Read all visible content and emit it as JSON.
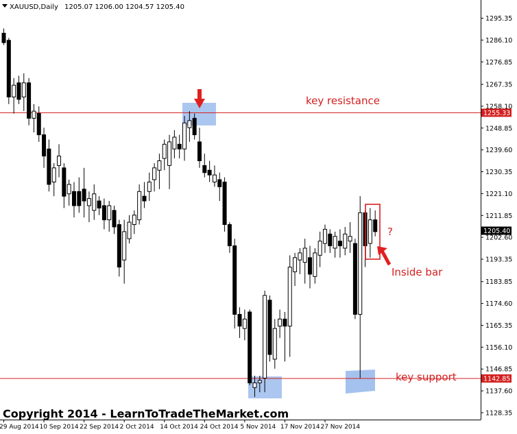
{
  "chart_data": {
    "type": "candlestick",
    "symbol_header": "XAUUSD,Daily",
    "ohlc_header": "1205.07 1206.00 1204.57 1205.40",
    "y_axis_ticks": [
      "1295.35",
      "1286.10",
      "1276.85",
      "1267.35",
      "1258.10",
      "1248.85",
      "1239.60",
      "1230.35",
      "1221.10",
      "1211.85",
      "1202.60",
      "1193.35",
      "1183.85",
      "1174.60",
      "1165.35",
      "1156.10",
      "1146.85",
      "1137.60",
      "1128.35"
    ],
    "x_axis_ticks": [
      "29 Aug 2014",
      "10 Sep 2014",
      "22 Sep 2014",
      "2 Oct 2014",
      "14 Oct 2014",
      "24 Oct 2014",
      "5 Nov 2014",
      "17 Nov 2014",
      "27 Nov 2014"
    ],
    "ylim": [
      1126.6,
      1298.7
    ],
    "current_price_label": "1205.40",
    "current_price": 1205.4,
    "levels": [
      {
        "name": "key resistance",
        "value": 1255.33,
        "label": "1255.33"
      },
      {
        "name": "key support",
        "value": 1142.85,
        "label": "1142.85"
      }
    ],
    "annotations": {
      "inside_bar": "Inside bar",
      "question": "?",
      "copyright": "Copyright 2014 - LearnToTradeTheMarket.com"
    },
    "candles": [
      {
        "o": 1289.0,
        "h": 1291.0,
        "l": 1284.0,
        "c": 1285.0
      },
      {
        "o": 1286.0,
        "h": 1287.0,
        "l": 1259.0,
        "c": 1262.0
      },
      {
        "o": 1262.0,
        "h": 1270.0,
        "l": 1255.0,
        "c": 1267.0
      },
      {
        "o": 1268.0,
        "h": 1271.0,
        "l": 1259.0,
        "c": 1261.0
      },
      {
        "o": 1262.0,
        "h": 1272.0,
        "l": 1256.0,
        "c": 1268.0
      },
      {
        "o": 1268.0,
        "h": 1270.0,
        "l": 1250.0,
        "c": 1253.0
      },
      {
        "o": 1253.0,
        "h": 1259.0,
        "l": 1247.0,
        "c": 1256.0
      },
      {
        "o": 1255.0,
        "h": 1258.0,
        "l": 1243.0,
        "c": 1246.0
      },
      {
        "o": 1246.0,
        "h": 1249.0,
        "l": 1232.0,
        "c": 1237.0
      },
      {
        "o": 1240.0,
        "h": 1244.0,
        "l": 1222.0,
        "c": 1225.0
      },
      {
        "o": 1226.0,
        "h": 1234.0,
        "l": 1220.0,
        "c": 1232.0
      },
      {
        "o": 1233.0,
        "h": 1242.0,
        "l": 1228.0,
        "c": 1237.0
      },
      {
        "o": 1232.0,
        "h": 1234.0,
        "l": 1215.0,
        "c": 1220.0
      },
      {
        "o": 1221.0,
        "h": 1227.0,
        "l": 1216.0,
        "c": 1225.0
      },
      {
        "o": 1222.0,
        "h": 1226.0,
        "l": 1211.0,
        "c": 1216.0
      },
      {
        "o": 1222.0,
        "h": 1228.0,
        "l": 1213.0,
        "c": 1216.0
      },
      {
        "o": 1223.0,
        "h": 1232.0,
        "l": 1211.0,
        "c": 1218.0
      },
      {
        "o": 1216.0,
        "h": 1222.0,
        "l": 1209.0,
        "c": 1219.0
      },
      {
        "o": 1214.0,
        "h": 1225.0,
        "l": 1210.0,
        "c": 1221.0
      },
      {
        "o": 1218.0,
        "h": 1220.0,
        "l": 1212.0,
        "c": 1215.0
      },
      {
        "o": 1216.0,
        "h": 1219.0,
        "l": 1206.0,
        "c": 1210.0
      },
      {
        "o": 1210.0,
        "h": 1218.0,
        "l": 1205.0,
        "c": 1216.0
      },
      {
        "o": 1214.0,
        "h": 1216.0,
        "l": 1204.0,
        "c": 1207.0
      },
      {
        "o": 1208.0,
        "h": 1210.0,
        "l": 1186.0,
        "c": 1190.0
      },
      {
        "o": 1193.0,
        "h": 1210.0,
        "l": 1183.0,
        "c": 1205.0
      },
      {
        "o": 1202.0,
        "h": 1212.0,
        "l": 1200.0,
        "c": 1209.0
      },
      {
        "o": 1208.0,
        "h": 1214.0,
        "l": 1204.0,
        "c": 1212.0
      },
      {
        "o": 1210.0,
        "h": 1225.0,
        "l": 1208.0,
        "c": 1222.0
      },
      {
        "o": 1220.0,
        "h": 1226.0,
        "l": 1215.0,
        "c": 1218.0
      },
      {
        "o": 1222.0,
        "h": 1230.0,
        "l": 1218.0,
        "c": 1226.0
      },
      {
        "o": 1227.0,
        "h": 1234.0,
        "l": 1222.0,
        "c": 1232.0
      },
      {
        "o": 1231.0,
        "h": 1238.0,
        "l": 1223.0,
        "c": 1235.0
      },
      {
        "o": 1236.0,
        "h": 1244.0,
        "l": 1231.0,
        "c": 1242.0
      },
      {
        "o": 1233.0,
        "h": 1246.0,
        "l": 1223.0,
        "c": 1243.0
      },
      {
        "o": 1240.0,
        "h": 1248.0,
        "l": 1236.0,
        "c": 1245.0
      },
      {
        "o": 1242.0,
        "h": 1246.0,
        "l": 1236.0,
        "c": 1240.0
      },
      {
        "o": 1240.0,
        "h": 1254.0,
        "l": 1235.0,
        "c": 1251.0
      },
      {
        "o": 1249.0,
        "h": 1256.0,
        "l": 1243.0,
        "c": 1252.0
      },
      {
        "o": 1253.0,
        "h": 1255.0,
        "l": 1244.0,
        "c": 1246.0
      },
      {
        "o": 1243.0,
        "h": 1249.0,
        "l": 1232.0,
        "c": 1235.0
      },
      {
        "o": 1233.0,
        "h": 1238.0,
        "l": 1228.0,
        "c": 1230.0
      },
      {
        "o": 1231.0,
        "h": 1235.0,
        "l": 1226.0,
        "c": 1229.0
      },
      {
        "o": 1226.0,
        "h": 1233.0,
        "l": 1224.0,
        "c": 1229.0
      },
      {
        "o": 1227.0,
        "h": 1230.0,
        "l": 1218.0,
        "c": 1224.0
      },
      {
        "o": 1226.0,
        "h": 1228.0,
        "l": 1205.0,
        "c": 1208.0
      },
      {
        "o": 1208.0,
        "h": 1209.0,
        "l": 1196.0,
        "c": 1199.0
      },
      {
        "o": 1199.0,
        "h": 1202.0,
        "l": 1164.0,
        "c": 1170.0
      },
      {
        "o": 1170.0,
        "h": 1173.0,
        "l": 1160.0,
        "c": 1165.0
      },
      {
        "o": 1164.0,
        "h": 1172.0,
        "l": 1159.0,
        "c": 1168.0
      },
      {
        "o": 1171.0,
        "h": 1172.0,
        "l": 1140.0,
        "c": 1141.0
      },
      {
        "o": 1139.0,
        "h": 1144.0,
        "l": 1135.0,
        "c": 1141.0
      },
      {
        "o": 1141.0,
        "h": 1144.0,
        "l": 1137.0,
        "c": 1142.0
      },
      {
        "o": 1143.0,
        "h": 1180.0,
        "l": 1137.0,
        "c": 1178.0
      },
      {
        "o": 1176.0,
        "h": 1178.0,
        "l": 1150.0,
        "c": 1153.0
      },
      {
        "o": 1151.0,
        "h": 1168.0,
        "l": 1147.0,
        "c": 1164.0
      },
      {
        "o": 1165.0,
        "h": 1172.0,
        "l": 1160.0,
        "c": 1168.0
      },
      {
        "o": 1168.0,
        "h": 1171.0,
        "l": 1150.0,
        "c": 1165.0
      },
      {
        "o": 1165.0,
        "h": 1195.0,
        "l": 1152.0,
        "c": 1190.0
      },
      {
        "o": 1188.0,
        "h": 1196.0,
        "l": 1182.0,
        "c": 1194.0
      },
      {
        "o": 1193.0,
        "h": 1198.0,
        "l": 1187.0,
        "c": 1196.0
      },
      {
        "o": 1192.0,
        "h": 1202.0,
        "l": 1183.0,
        "c": 1198.0
      },
      {
        "o": 1194.0,
        "h": 1199.0,
        "l": 1181.0,
        "c": 1187.0
      },
      {
        "o": 1186.0,
        "h": 1198.0,
        "l": 1183.0,
        "c": 1196.0
      },
      {
        "o": 1195.0,
        "h": 1205.0,
        "l": 1190.0,
        "c": 1201.0
      },
      {
        "o": 1200.0,
        "h": 1208.0,
        "l": 1196.0,
        "c": 1206.0
      },
      {
        "o": 1204.0,
        "h": 1206.0,
        "l": 1196.0,
        "c": 1199.0
      },
      {
        "o": 1198.0,
        "h": 1205.0,
        "l": 1194.0,
        "c": 1203.0
      },
      {
        "o": 1201.0,
        "h": 1206.0,
        "l": 1194.0,
        "c": 1199.0
      },
      {
        "o": 1198.0,
        "h": 1207.0,
        "l": 1195.0,
        "c": 1204.0
      },
      {
        "o": 1201.0,
        "h": 1209.0,
        "l": 1196.0,
        "c": 1203.0
      },
      {
        "o": 1200.0,
        "h": 1202.0,
        "l": 1168.0,
        "c": 1170.0
      },
      {
        "o": 1170.0,
        "h": 1220.0,
        "l": 1143.0,
        "c": 1213.0
      },
      {
        "o": 1213.0,
        "h": 1214.0,
        "l": 1190.0,
        "c": 1199.0
      },
      {
        "o": 1200.0,
        "h": 1215.0,
        "l": 1194.0,
        "c": 1210.0
      },
      {
        "o": 1210.0,
        "h": 1214.0,
        "l": 1203.0,
        "c": 1205.0
      }
    ]
  }
}
